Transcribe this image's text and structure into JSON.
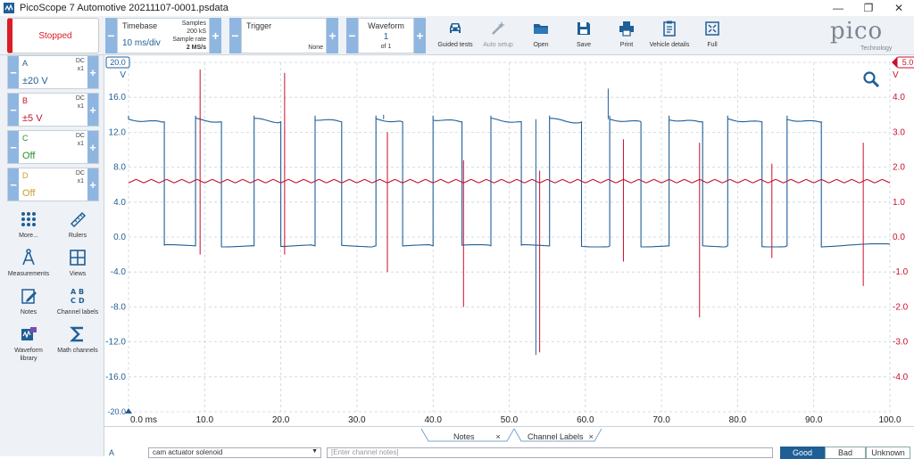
{
  "window": {
    "title": "PicoScope 7 Automotive 20211107-0001.psdata",
    "minimize": "—",
    "maximize": "❐",
    "close": "✕"
  },
  "toolbar": {
    "run_state": "Stopped",
    "timebase": {
      "label": "Timebase",
      "value": "10 ms/div",
      "samples_label": "Samples",
      "samples_value": "200 kS",
      "rate_label": "Sample rate",
      "rate_value": "2 MS/s"
    },
    "trigger": {
      "label": "Trigger",
      "mode": "None"
    },
    "waveform": {
      "label": "Waveform",
      "index": "1",
      "of": "of 1"
    },
    "buttons": [
      {
        "id": "guided-tests",
        "label": "Guided tests",
        "icon": "car-icon"
      },
      {
        "id": "auto-setup",
        "label": "Auto setup",
        "icon": "wand-icon"
      },
      {
        "id": "open",
        "label": "Open",
        "icon": "folder-icon"
      },
      {
        "id": "save",
        "label": "Save",
        "icon": "floppy-icon"
      },
      {
        "id": "print",
        "label": "Print",
        "icon": "printer-icon"
      },
      {
        "id": "vehicle-details",
        "label": "Vehicle details",
        "icon": "clipboard-icon"
      },
      {
        "id": "full",
        "label": "Full",
        "icon": "fullscreen-icon"
      }
    ],
    "logo": {
      "text": "pico",
      "sub": "Technology"
    }
  },
  "channels": [
    {
      "name": "A",
      "coupling": "DC",
      "probe": "x1",
      "range": "±20 V",
      "color": "#1f5f96"
    },
    {
      "name": "B",
      "coupling": "DC",
      "probe": "x1",
      "range": "±5 V",
      "color": "#c8102e"
    },
    {
      "name": "C",
      "coupling": "DC",
      "probe": "x1",
      "range": "Off",
      "color": "#2e8b2e"
    },
    {
      "name": "D",
      "coupling": "DC",
      "probe": "x1",
      "range": "Off",
      "color": "#c9a227"
    }
  ],
  "tools": [
    {
      "label": "More...",
      "icon": "dots-grid-icon"
    },
    {
      "label": "Rulers",
      "icon": "ruler-icon"
    },
    {
      "label": "Measurements",
      "icon": "compass-icon"
    },
    {
      "label": "Views",
      "icon": "grid-icon"
    },
    {
      "label": "Notes",
      "icon": "notes-icon"
    },
    {
      "label": "Channel labels",
      "icon": "abcd-icon"
    },
    {
      "label": "Waveform library",
      "icon": "waveform-library-icon"
    },
    {
      "label": "Math channels",
      "icon": "sigma-icon"
    }
  ],
  "chart_data": {
    "type": "line",
    "xlabel": "",
    "x_unit_label": "ms",
    "left_unit": "V",
    "right_unit": "V",
    "left_top_marker": "20.0",
    "right_top_marker": "5.0",
    "left_bottom_marker": "-20.0",
    "xlim": [
      0,
      100
    ],
    "ylim_left": [
      -20,
      20
    ],
    "ylim_right": [
      -5,
      5
    ],
    "x_ticks": [
      "0.0 ms",
      "10.0",
      "20.0",
      "30.0",
      "40.0",
      "50.0",
      "60.0",
      "70.0",
      "80.0",
      "90.0",
      "100.0"
    ],
    "left_ticks": [
      "16.0",
      "12.0",
      "8.0",
      "4.0",
      "0.0",
      "-4.0",
      "-8.0",
      "-12.0",
      "-16.0"
    ],
    "right_ticks": [
      "4.0",
      "3.0",
      "2.0",
      "1.0",
      "0.0",
      "-1.0",
      "-2.0",
      "-3.0",
      "-4.0"
    ],
    "grid": true,
    "series": [
      {
        "name": "A",
        "axis": "left",
        "color": "#1f5f96",
        "low_level": -1.0,
        "high_level": 13.5,
        "pulses": [
          [
            0,
            4.7
          ],
          [
            8.8,
            12.2
          ],
          [
            16.5,
            20.0
          ],
          [
            24.5,
            28.0
          ],
          [
            32.5,
            36.0
          ],
          [
            40.0,
            43.8
          ],
          [
            47.6,
            51.6
          ],
          [
            55.3,
            59.5
          ],
          [
            63.2,
            67.3
          ],
          [
            71.0,
            75.4
          ],
          [
            78.7,
            83.2
          ],
          [
            86.5,
            91.0
          ]
        ],
        "spikes": [
          [
            63.0,
            17.0
          ],
          [
            33.5,
            14.0
          ],
          [
            53.5,
            -13.5
          ]
        ]
      },
      {
        "name": "B",
        "axis": "right",
        "color": "#c8102e",
        "baseline": 1.6,
        "ripple": 0.1,
        "ripple_period_ms": 2.0,
        "spikes": [
          [
            9.4,
            4.8,
            -0.5
          ],
          [
            20.5,
            4.7,
            -0.5
          ],
          [
            34.0,
            3.0,
            -1.0
          ],
          [
            44.0,
            2.2,
            -2.0
          ],
          [
            54.0,
            1.9,
            -3.3
          ],
          [
            65.0,
            2.8,
            -0.7
          ],
          [
            75.0,
            2.7,
            -2.3
          ],
          [
            84.5,
            2.1,
            -0.6
          ],
          [
            96.5,
            2.7,
            -1.4
          ]
        ]
      }
    ]
  },
  "bottom": {
    "tabs": [
      {
        "label": "Notes"
      },
      {
        "label": "Channel Labels"
      }
    ],
    "close_glyph": "×",
    "channel": "A",
    "label_value": "cam actuator solenoid",
    "notes_placeholder": "[Enter channel notes]",
    "ratings": [
      "Good",
      "Bad",
      "Unknown"
    ]
  },
  "colors": {
    "accent": "#1f5f96",
    "stop": "#d81f26",
    "button": "#8fb6e0"
  }
}
